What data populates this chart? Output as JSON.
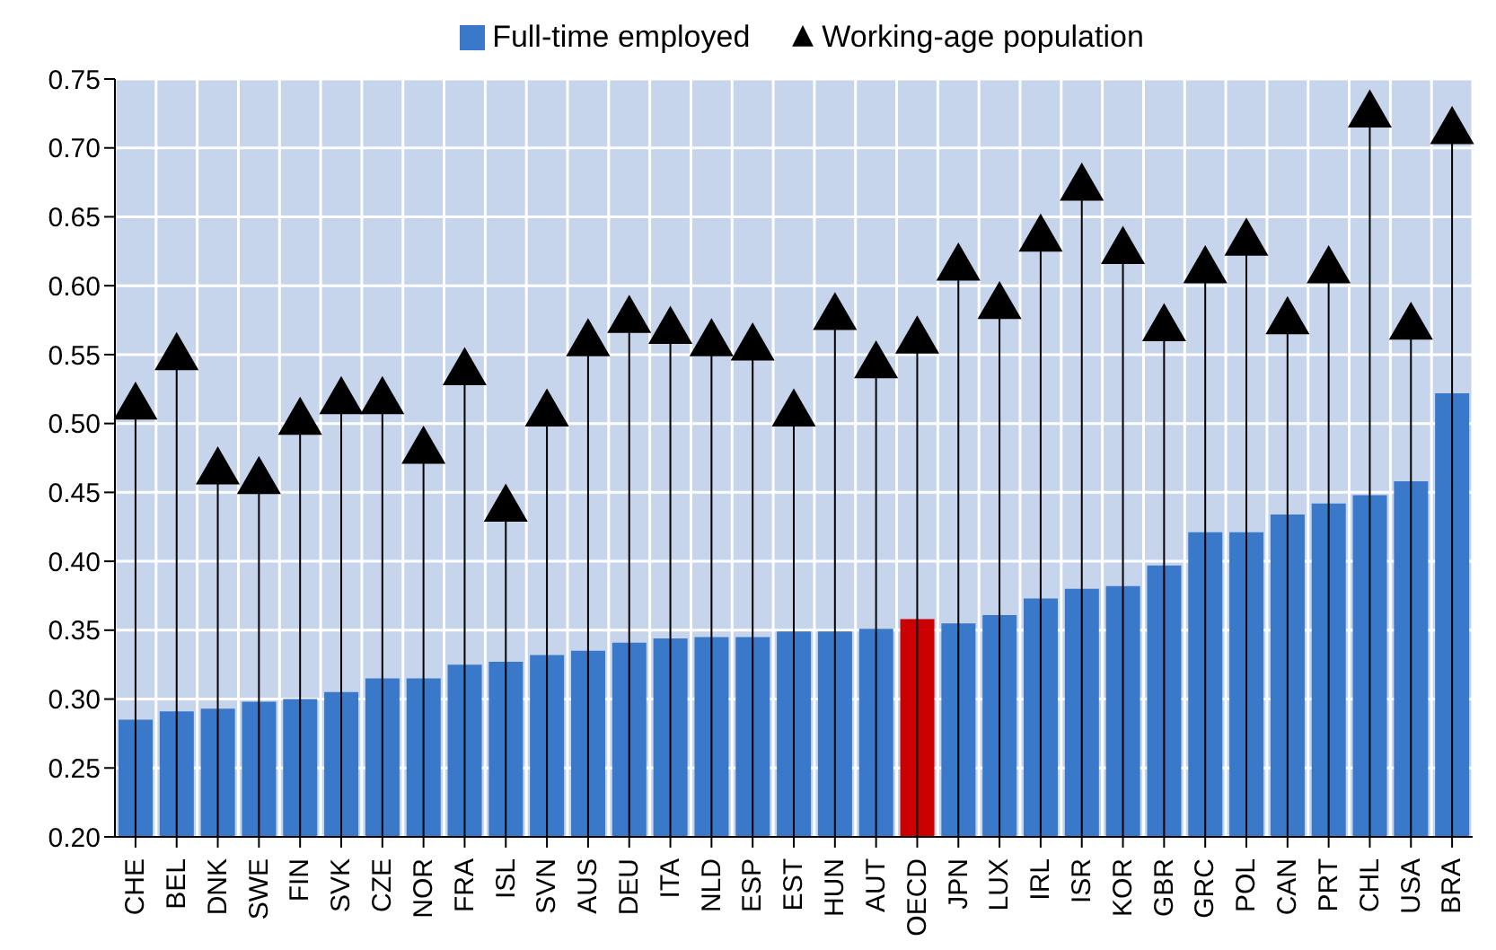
{
  "chart_data": {
    "type": "bar",
    "categories": [
      "CHE",
      "BEL",
      "DNK",
      "SWE",
      "FIN",
      "SVK",
      "CZE",
      "NOR",
      "FRA",
      "ISL",
      "SVN",
      "AUS",
      "DEU",
      "ITA",
      "NLD",
      "ESP",
      "EST",
      "HUN",
      "AUT",
      "OECD",
      "JPN",
      "LUX",
      "IRL",
      "ISR",
      "KOR",
      "GBR",
      "GRC",
      "POL",
      "CAN",
      "PRT",
      "CHL",
      "USA",
      "BRA"
    ],
    "series": [
      {
        "name": "Full-time employed",
        "color": "#3a78c9",
        "colors": [
          "#3a78c9",
          "#3a78c9",
          "#3a78c9",
          "#3a78c9",
          "#3a78c9",
          "#3a78c9",
          "#3a78c9",
          "#3a78c9",
          "#3a78c9",
          "#3a78c9",
          "#3a78c9",
          "#3a78c9",
          "#3a78c9",
          "#3a78c9",
          "#3a78c9",
          "#3a78c9",
          "#3a78c9",
          "#3a78c9",
          "#3a78c9",
          "#cc0000",
          "#3a78c9",
          "#3a78c9",
          "#3a78c9",
          "#3a78c9",
          "#3a78c9",
          "#3a78c9",
          "#3a78c9",
          "#3a78c9",
          "#3a78c9",
          "#3a78c9",
          "#3a78c9",
          "#3a78c9",
          "#3a78c9"
        ],
        "values": [
          0.285,
          0.291,
          0.293,
          0.298,
          0.3,
          0.305,
          0.315,
          0.315,
          0.325,
          0.327,
          0.332,
          0.335,
          0.341,
          0.344,
          0.345,
          0.345,
          0.349,
          0.349,
          0.351,
          0.358,
          0.355,
          0.361,
          0.373,
          0.38,
          0.382,
          0.397,
          0.421,
          0.421,
          0.434,
          0.442,
          0.448,
          0.458,
          0.522
        ]
      },
      {
        "name": "Working-age population",
        "type": "scatter",
        "marker": "triangle",
        "color": "#000000",
        "values": [
          0.512,
          0.548,
          0.465,
          0.458,
          0.501,
          0.516,
          0.516,
          0.48,
          0.537,
          0.438,
          0.507,
          0.558,
          0.575,
          0.567,
          0.558,
          0.555,
          0.507,
          0.577,
          0.542,
          0.56,
          0.613,
          0.585,
          0.634,
          0.671,
          0.625,
          0.569,
          0.611,
          0.631,
          0.574,
          0.611,
          0.724,
          0.57,
          0.712
        ]
      }
    ],
    "ylim": [
      0.2,
      0.75
    ],
    "yticks": [
      {
        "value": 0.2,
        "label": "0.20"
      },
      {
        "value": 0.25,
        "label": "0.25"
      },
      {
        "value": 0.3,
        "label": "0.30"
      },
      {
        "value": 0.35,
        "label": "0.35"
      },
      {
        "value": 0.4,
        "label": "0.40"
      },
      {
        "value": 0.45,
        "label": "0.45"
      },
      {
        "value": 0.5,
        "label": "0.50"
      },
      {
        "value": 0.55,
        "label": "0.55"
      },
      {
        "value": 0.6,
        "label": "0.60"
      },
      {
        "value": 0.65,
        "label": "0.65"
      },
      {
        "value": 0.7,
        "label": "0.70"
      },
      {
        "value": 0.75,
        "label": "0.75"
      }
    ],
    "grid": true,
    "legend": "top"
  }
}
